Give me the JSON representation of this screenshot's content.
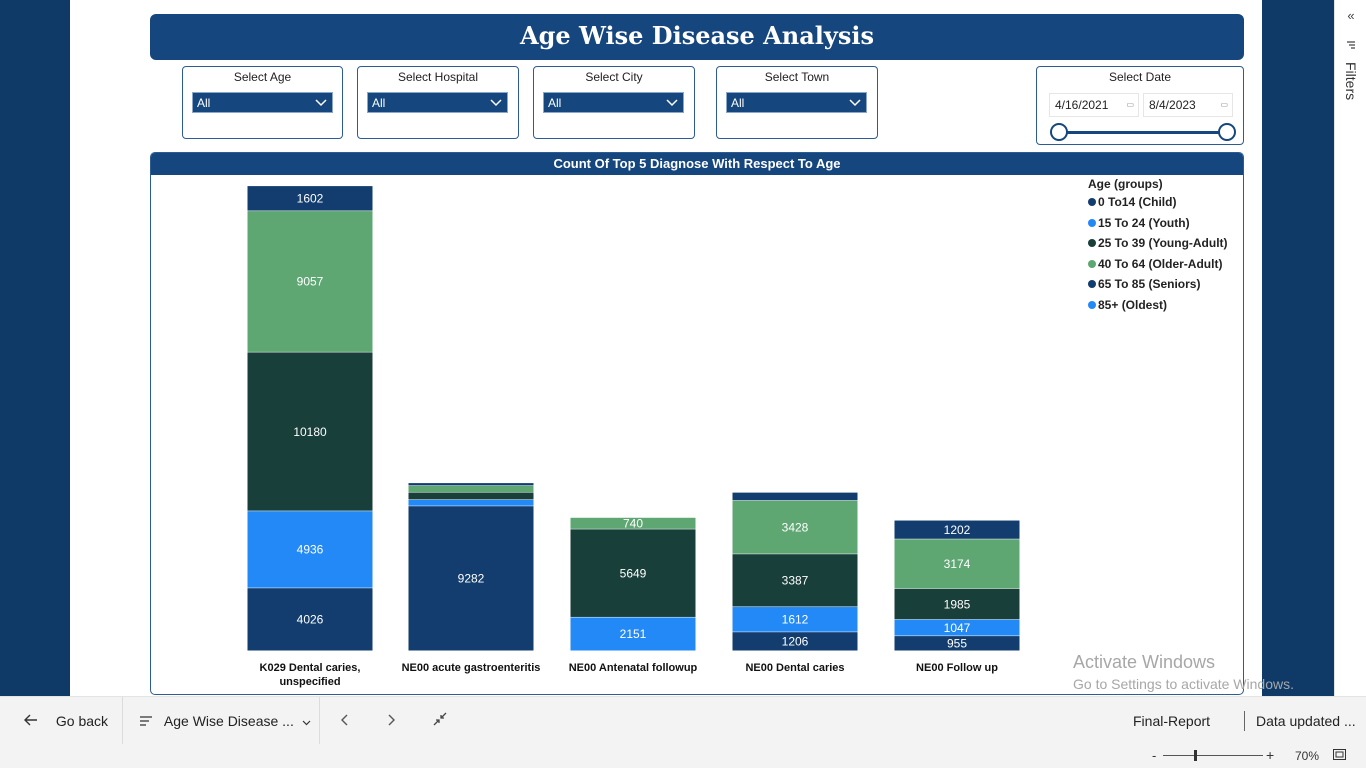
{
  "report": {
    "title": "Age Wise Disease Analysis"
  },
  "slicers": [
    {
      "label": "Select Age",
      "value": "All"
    },
    {
      "label": "Select Hospital",
      "value": "All"
    },
    {
      "label": "Select City",
      "value": "All"
    },
    {
      "label": "Select Town",
      "value": "All"
    }
  ],
  "date_slicer": {
    "label": "Select Date",
    "start": "4/16/2021",
    "end": "8/4/2023"
  },
  "chart_data": {
    "type": "bar",
    "stacked": true,
    "title": "Count Of Top 5 Diagnose With Respect To Age",
    "legend_title": "Age (groups)",
    "legend_position": "top-right",
    "categories": [
      "K029 Dental caries, unspecified",
      "NE00 acute gastroenteritis",
      "NE00 Antenatal followup",
      "NE00 Dental caries",
      "NE00 Follow up"
    ],
    "category_lines": [
      [
        "K029 Dental caries,",
        "unspecified"
      ],
      [
        "NE00 acute gastroenteritis"
      ],
      [
        "NE00 Antenatal followup"
      ],
      [
        "NE00 Dental caries"
      ],
      [
        "NE00 Follow up"
      ]
    ],
    "series": [
      {
        "name": "0 To14 (Child)",
        "color": "#123d6e",
        "values": [
          4026,
          9282,
          0,
          1206,
          955
        ]
      },
      {
        "name": "15 To 24 (Youth)",
        "color": "#2389f7",
        "values": [
          4936,
          400,
          2151,
          1612,
          1047
        ]
      },
      {
        "name": "25 To 39 (Young-Adult)",
        "color": "#193f3b",
        "values": [
          10180,
          480,
          5649,
          3387,
          1985
        ]
      },
      {
        "name": "40 To 64 (Older-Adult)",
        "color": "#5ea773",
        "values": [
          9057,
          420,
          740,
          3428,
          3174
        ]
      },
      {
        "name": "65 To 85 (Seniors)",
        "color": "#123d6e",
        "values": [
          1602,
          180,
          0,
          520,
          1202
        ]
      },
      {
        "name": "85+ (Oldest)",
        "color": "#2389f7",
        "values": [
          0,
          0,
          0,
          0,
          0
        ]
      }
    ],
    "ylim": [
      0,
      30000
    ],
    "grid": false
  },
  "windows_watermark": {
    "line1": "Activate Windows",
    "line2": "Go to Settings to activate Windows."
  },
  "bottom_bar": {
    "go_back": "Go back",
    "page_name": "Age Wise Disease ...",
    "report_name": "Final-Report",
    "data_updated": "Data updated ..."
  },
  "filters_pane": {
    "label": "Filters"
  },
  "status": {
    "zoom": "70%"
  },
  "icons": [
    "back-arrow-icon",
    "pages-list-icon",
    "chevron-down-icon",
    "prev-page-icon",
    "next-page-icon",
    "exit-focus-icon",
    "filter-icon",
    "collapse-icon",
    "calendar-icon",
    "fit-page-icon"
  ]
}
